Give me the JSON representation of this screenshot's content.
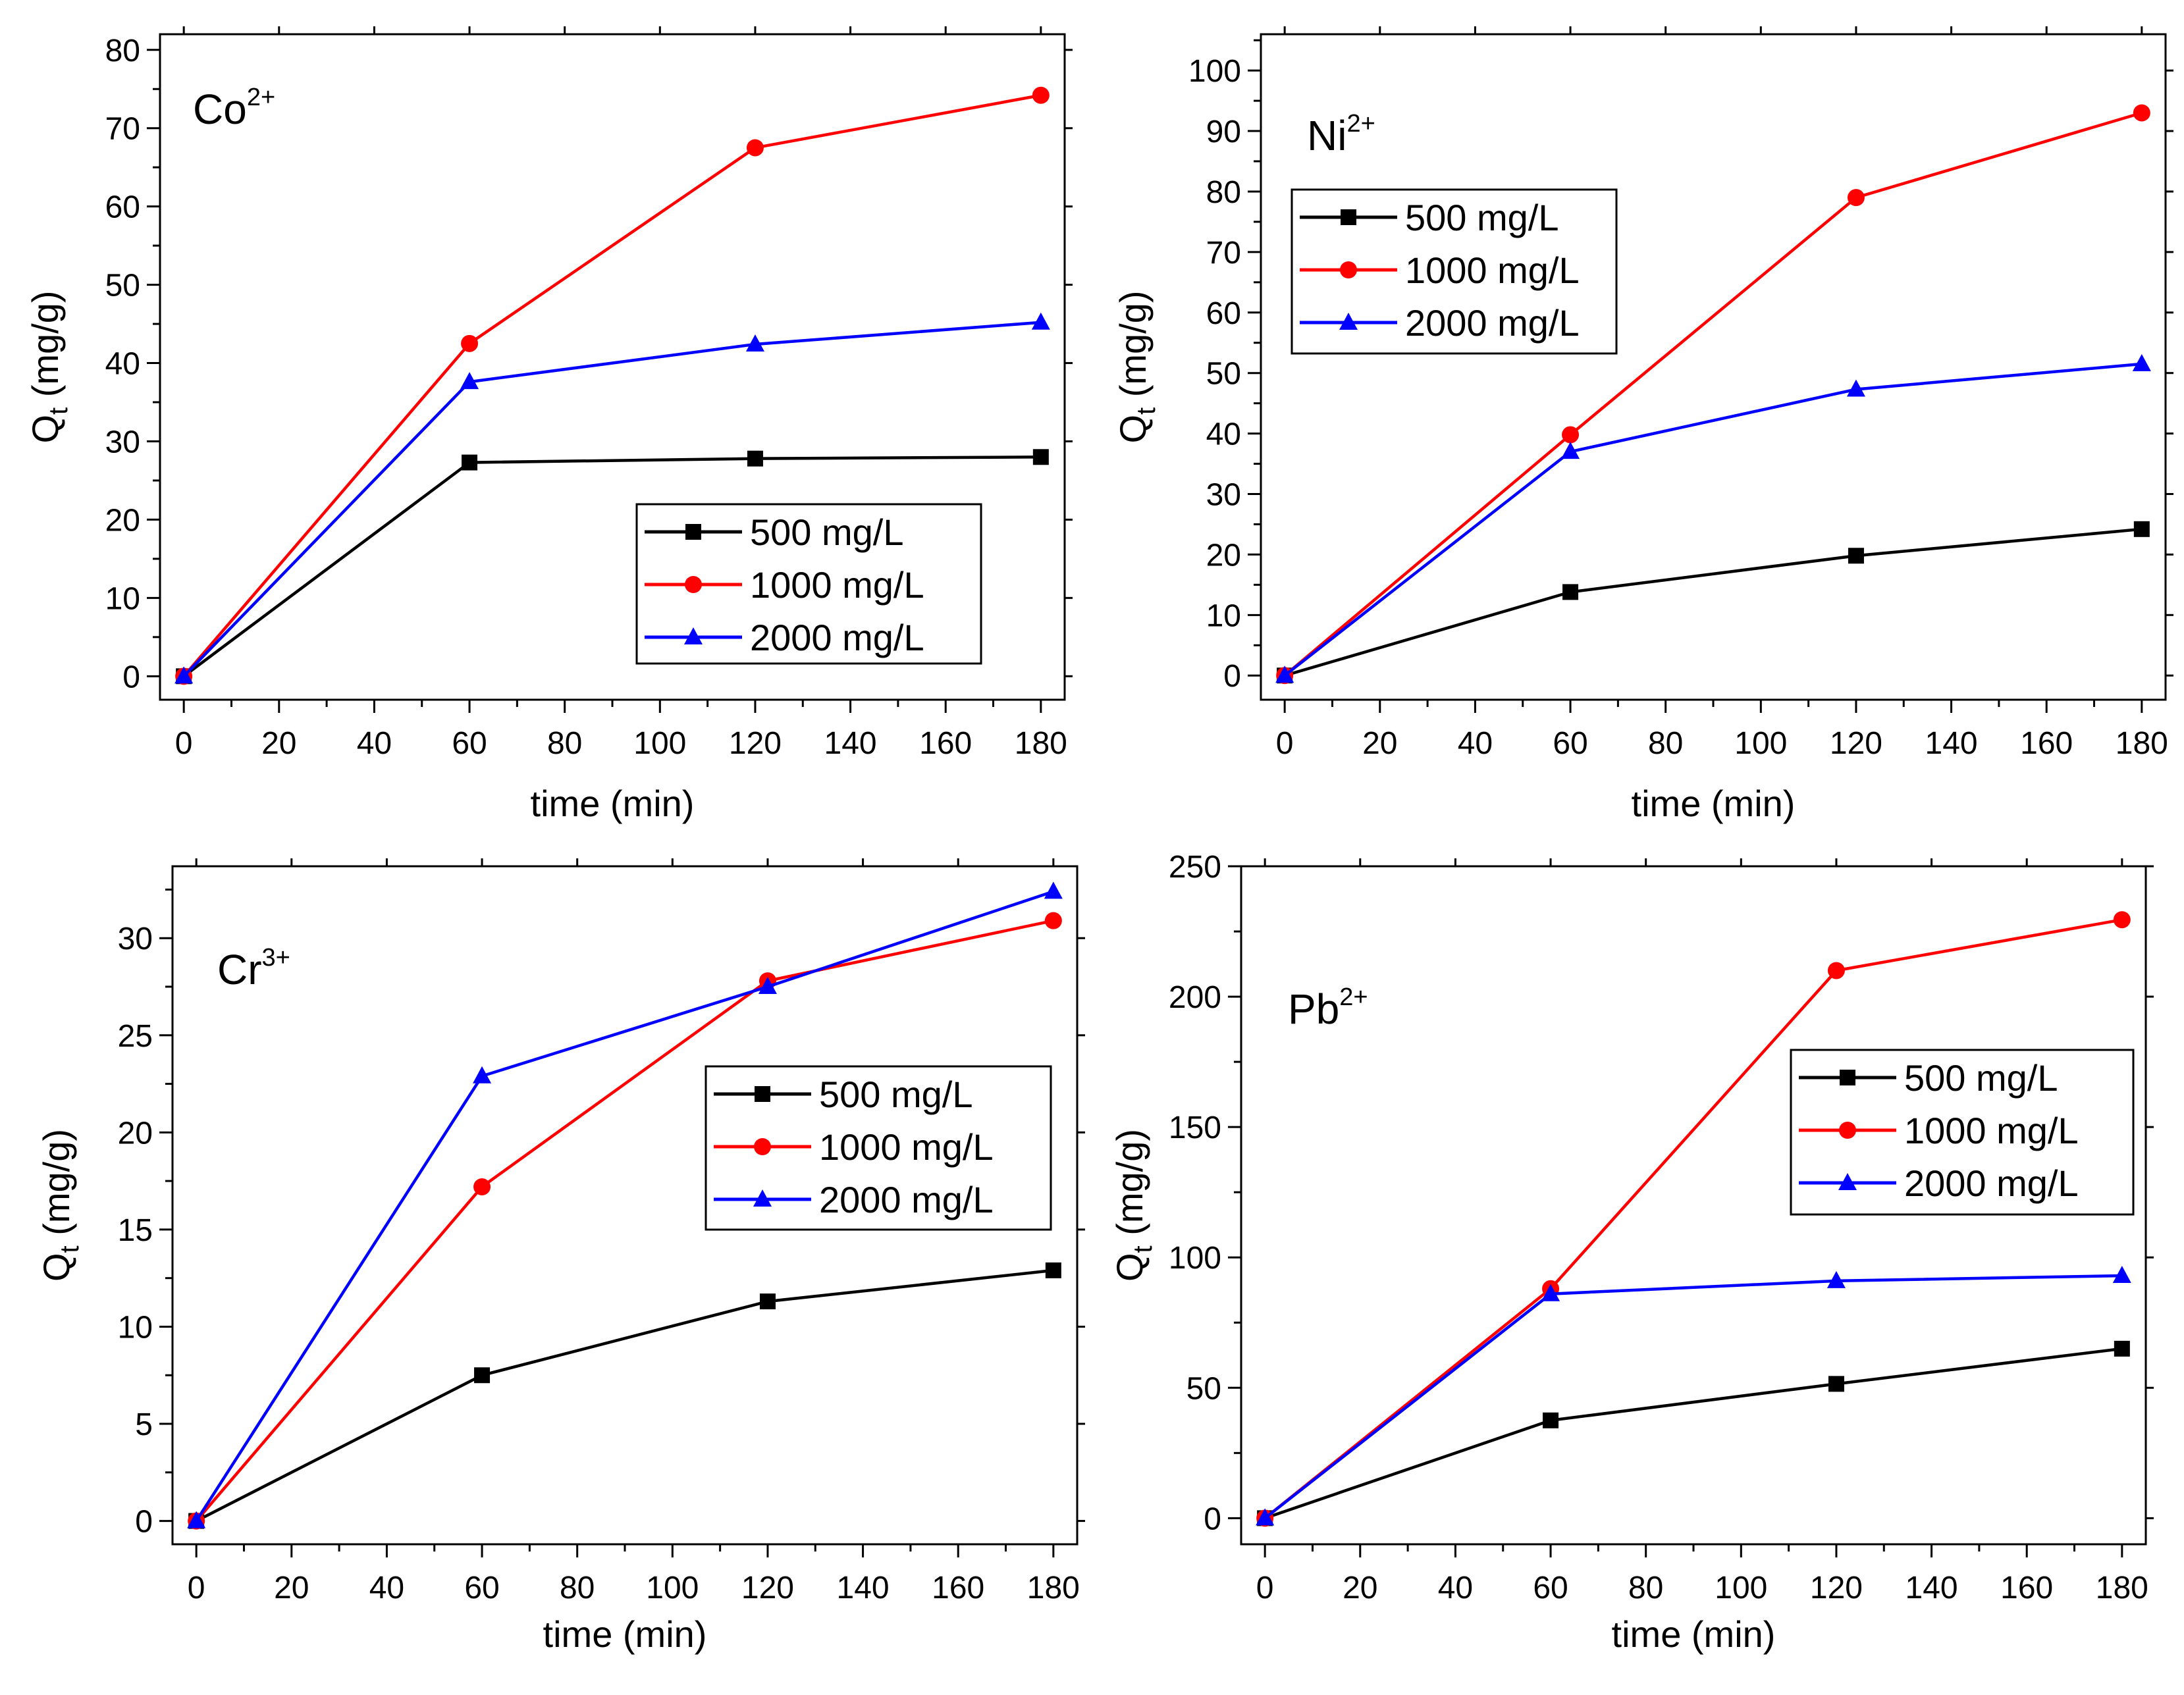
{
  "chart_data": [
    {
      "type": "line",
      "annotation": {
        "base": "Co",
        "sup": "2+"
      },
      "xlabel": "time (min)",
      "ylabel": {
        "base": "Q",
        "sub": "t",
        "unit": "(mg/g)"
      },
      "xlim": [
        -5,
        185
      ],
      "ylim": [
        -3,
        82
      ],
      "xticks": [
        0,
        20,
        40,
        60,
        80,
        100,
        120,
        140,
        160,
        180
      ],
      "yticks": [
        0,
        10,
        20,
        30,
        40,
        50,
        60,
        70,
        80
      ],
      "legend_position": "bottom-right",
      "x": [
        0,
        60,
        120,
        180
      ],
      "series": [
        {
          "name": "500 mg/L",
          "color": "#000000",
          "marker": "square",
          "values": [
            0,
            27.3,
            27.8,
            28.0
          ]
        },
        {
          "name": "1000 mg/L",
          "color": "#ff0000",
          "marker": "circle",
          "values": [
            0,
            42.5,
            67.5,
            74.2
          ]
        },
        {
          "name": "2000 mg/L",
          "color": "#0000ff",
          "marker": "triangle",
          "values": [
            0,
            37.6,
            42.4,
            45.2
          ]
        }
      ]
    },
    {
      "type": "line",
      "annotation": {
        "base": "Ni",
        "sup": "2+"
      },
      "xlabel": "time (min)",
      "ylabel": {
        "base": "Q",
        "sub": "t",
        "unit": "(mg/g)"
      },
      "xlim": [
        -5,
        185
      ],
      "ylim": [
        -4,
        106
      ],
      "xticks": [
        0,
        20,
        40,
        60,
        80,
        100,
        120,
        140,
        160,
        180
      ],
      "yticks": [
        0,
        10,
        20,
        30,
        40,
        50,
        60,
        70,
        80,
        90,
        100
      ],
      "legend_position": "top-left",
      "x": [
        0,
        60,
        120,
        180
      ],
      "series": [
        {
          "name": "500 mg/L",
          "color": "#000000",
          "marker": "square",
          "values": [
            0,
            13.8,
            19.8,
            24.2
          ]
        },
        {
          "name": "1000 mg/L",
          "color": "#ff0000",
          "marker": "circle",
          "values": [
            0,
            39.8,
            79.0,
            93.0
          ]
        },
        {
          "name": "2000 mg/L",
          "color": "#0000ff",
          "marker": "triangle",
          "values": [
            0,
            37.0,
            47.3,
            51.5
          ]
        }
      ]
    },
    {
      "type": "line",
      "annotation": {
        "base": "Cr",
        "sup": "3+"
      },
      "xlabel": "time (min)",
      "ylabel": {
        "base": "Q",
        "sub": "t",
        "unit": "(mg/g)"
      },
      "xlim": [
        -5,
        185
      ],
      "ylim": [
        -1.2,
        33.7
      ],
      "xticks": [
        0,
        20,
        40,
        60,
        80,
        100,
        120,
        140,
        160,
        180
      ],
      "yticks": [
        0,
        5,
        10,
        15,
        20,
        25,
        30
      ],
      "legend_position": "center-right",
      "x": [
        0,
        60,
        120,
        180
      ],
      "series": [
        {
          "name": "500 mg/L",
          "color": "#000000",
          "marker": "square",
          "values": [
            0,
            7.5,
            11.3,
            12.9
          ]
        },
        {
          "name": "1000 mg/L",
          "color": "#ff0000",
          "marker": "circle",
          "values": [
            0,
            17.2,
            27.8,
            30.9
          ]
        },
        {
          "name": "2000 mg/L",
          "color": "#0000ff",
          "marker": "triangle",
          "values": [
            0,
            22.9,
            27.5,
            32.4
          ]
        }
      ]
    },
    {
      "type": "line",
      "annotation": {
        "base": "Pb",
        "sup": "2+"
      },
      "xlabel": "time (min)",
      "ylabel": {
        "base": "Q",
        "sub": "t",
        "unit": "(mg/g)"
      },
      "xlim": [
        -5,
        185
      ],
      "ylim": [
        -10,
        250
      ],
      "xticks": [
        0,
        20,
        40,
        60,
        80,
        100,
        120,
        140,
        160,
        180
      ],
      "yticks": [
        0,
        50,
        100,
        150,
        200,
        250
      ],
      "legend_position": "center-right",
      "x": [
        0,
        60,
        120,
        180
      ],
      "series": [
        {
          "name": "500 mg/L",
          "color": "#000000",
          "marker": "square",
          "values": [
            0,
            37.5,
            51.5,
            65.0
          ]
        },
        {
          "name": "1000 mg/L",
          "color": "#ff0000",
          "marker": "circle",
          "values": [
            0,
            88.0,
            210.0,
            229.5
          ]
        },
        {
          "name": "2000 mg/L",
          "color": "#0000ff",
          "marker": "triangle",
          "values": [
            0,
            86.0,
            91.0,
            93.0
          ]
        }
      ]
    }
  ]
}
